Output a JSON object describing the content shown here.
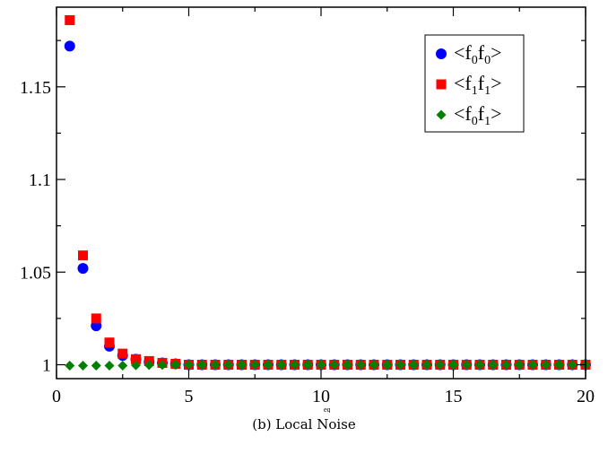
{
  "caption": "(b) Local Noise",
  "chart_data": {
    "type": "scatter",
    "title": "",
    "xlabel": "ρ",
    "xlabel_sup": "eq",
    "ylabel": "",
    "xlim": [
      0,
      20
    ],
    "ylim": [
      0.9925,
      1.193
    ],
    "x_ticks": [
      0,
      5,
      10,
      15,
      20
    ],
    "y_ticks": [
      1,
      1.05,
      1.1,
      1.15
    ],
    "x_tick_labels": [
      "0",
      "5",
      "10",
      "15",
      "20"
    ],
    "y_tick_labels": [
      "1",
      "1.05",
      "1.1",
      "1.15"
    ],
    "grid": false,
    "legend_position": "top-right",
    "x": [
      0.5,
      1.0,
      1.5,
      2.0,
      2.5,
      3.0,
      3.5,
      4.0,
      4.5,
      5.0,
      5.5,
      6.0,
      6.5,
      7.0,
      7.5,
      8.0,
      8.5,
      9.0,
      9.5,
      10.0,
      10.5,
      11.0,
      11.5,
      12.0,
      12.5,
      13.0,
      13.5,
      14.0,
      14.5,
      15.0,
      15.5,
      16.0,
      16.5,
      17.0,
      17.5,
      18.0,
      18.5,
      19.0,
      19.5,
      20.0
    ],
    "series": [
      {
        "label_base": [
          "f",
          "f"
        ],
        "label_sub": [
          "0",
          "0"
        ],
        "marker": "circle",
        "color": "#0000ff",
        "values": [
          1.172,
          1.052,
          1.021,
          1.01,
          1.005,
          1.003,
          1.0015,
          1.001,
          1.0005,
          1.0,
          1.0,
          1.0,
          1.0,
          1.0,
          1.0,
          1.0,
          1.0,
          1.0,
          1.0,
          1.0,
          1.0,
          1.0,
          1.0,
          1.0,
          1.0,
          1.0,
          1.0,
          1.0,
          1.0,
          1.0,
          1.0,
          1.0,
          1.0,
          1.0,
          1.0,
          1.0,
          1.0,
          1.0,
          1.0,
          1.0
        ]
      },
      {
        "label_base": [
          "f",
          "f"
        ],
        "label_sub": [
          "1",
          "1"
        ],
        "marker": "square",
        "color": "#ff0000",
        "values": [
          1.186,
          1.059,
          1.025,
          1.012,
          1.006,
          1.003,
          1.002,
          1.001,
          1.0005,
          1.0,
          1.0,
          1.0,
          1.0,
          1.0,
          1.0,
          1.0,
          1.0,
          1.0,
          1.0,
          1.0,
          1.0,
          1.0,
          1.0,
          1.0,
          1.0,
          1.0,
          1.0,
          1.0,
          1.0,
          1.0,
          1.0,
          1.0,
          1.0,
          1.0,
          1.0,
          1.0,
          1.0,
          1.0,
          1.0,
          1.0
        ]
      },
      {
        "label_base": [
          "f",
          "f"
        ],
        "label_sub": [
          "0",
          "1"
        ],
        "marker": "diamond",
        "color": "#008000",
        "values": [
          0.9995,
          0.9995,
          0.9995,
          0.9995,
          0.9995,
          0.9997,
          0.9998,
          0.9999,
          1.0,
          1.0,
          1.0,
          1.0,
          1.0,
          1.0,
          1.0,
          1.0,
          1.0,
          1.0,
          1.0,
          1.0,
          1.0,
          1.0,
          1.0,
          1.0,
          1.0,
          1.0,
          1.0,
          1.0,
          1.0,
          1.0,
          1.0,
          1.0,
          1.0,
          1.0,
          1.0,
          1.0,
          1.0,
          1.0,
          1.0,
          1.0
        ]
      }
    ]
  }
}
